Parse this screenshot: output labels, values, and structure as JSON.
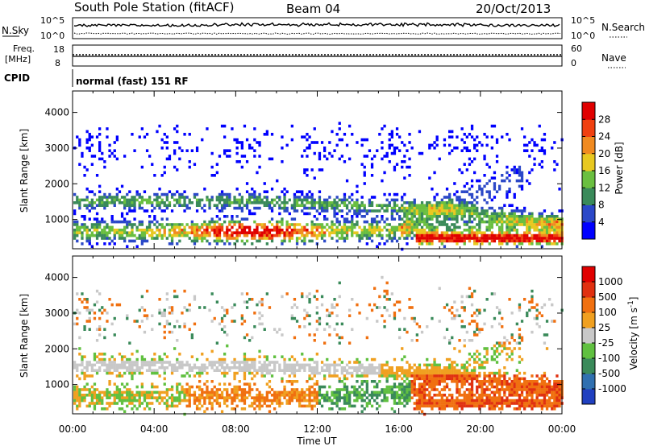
{
  "header": {
    "title": "South Pole Station (fitACF)",
    "beam": "Beam 04",
    "date": "20/Oct/2013"
  },
  "status_panels": {
    "nsky_label": "N.Sky",
    "nsky_ticks": [
      "10^5",
      "10^0"
    ],
    "nsearch_label": "N.Search",
    "nsearch_ticks": [
      "10^5",
      "10^0"
    ],
    "freq_label_line1": "Freq.",
    "freq_label_line2": "[MHz]",
    "freq_ticks": [
      "18",
      "8"
    ],
    "nave_label": "Nave",
    "nave_ticks": [
      "60",
      "0"
    ],
    "cpid_label": "CPID",
    "cpid_text": "normal (fast) 151 RF"
  },
  "chart_data": [
    {
      "type": "heatmap",
      "name": "power",
      "ylabel": "Slant Range [km]",
      "ylim": [
        180,
        4600
      ],
      "yticks": [
        "1000",
        "2000",
        "3000",
        "4000"
      ],
      "xlabel": "",
      "xticks": [
        "00:00",
        "04:00",
        "08:00",
        "12:00",
        "16:00",
        "20:00",
        "00:00"
      ],
      "colorbar": {
        "label": "Power [dB]",
        "ticks": [
          "4",
          "8",
          "12",
          "16",
          "20",
          "24",
          "28"
        ],
        "range": [
          0,
          32
        ],
        "colors": [
          "#0000ff",
          "#2b48c8",
          "#3a8a5a",
          "#6abf40",
          "#e8c820",
          "#f08a20",
          "#f04010",
          "#e00000"
        ]
      }
    },
    {
      "type": "heatmap",
      "name": "velocity",
      "ylabel": "Slant Range [km]",
      "ylim": [
        180,
        4600
      ],
      "yticks": [
        "1000",
        "2000",
        "3000",
        "4000"
      ],
      "xlabel": "Time UT",
      "xticks": [
        "00:00",
        "04:00",
        "08:00",
        "12:00",
        "16:00",
        "20:00",
        "00:00"
      ],
      "colorbar": {
        "label": "Velocity [m s^-1]",
        "ticks": [
          "1000",
          "500",
          "100",
          "25",
          "-25",
          "-100",
          "-500",
          "-1000"
        ],
        "colors": [
          "#2040c0",
          "#3070b0",
          "#3a8a5a",
          "#60c040",
          "#c8c8c8",
          "#f0a020",
          "#f07010",
          "#e03010",
          "#e00000"
        ]
      }
    }
  ]
}
